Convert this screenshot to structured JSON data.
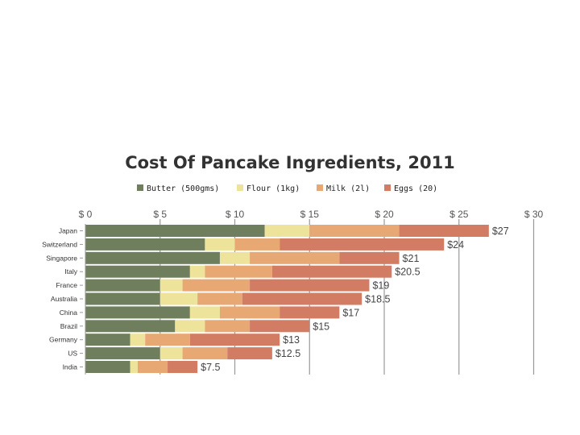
{
  "chart_data": {
    "type": "bar",
    "orientation": "horizontal",
    "stacked": true,
    "title": "Cost Of Pancake Ingredients, 2011",
    "categories": [
      "Japan",
      "Switzerland",
      "Singapore",
      "Italy",
      "France",
      "Australia",
      "China",
      "Brazil",
      "Germany",
      "US",
      "India"
    ],
    "series": [
      {
        "name": "Butter (500gms)",
        "color": "#6f7f5e",
        "values": [
          12,
          8,
          9,
          7,
          5,
          5,
          7,
          6,
          3,
          5,
          3
        ]
      },
      {
        "name": "Flour (1kg)",
        "color": "#ede39a",
        "values": [
          3,
          2,
          2,
          1,
          1.5,
          2.5,
          2,
          2,
          1,
          1.5,
          0.5
        ]
      },
      {
        "name": "Milk (2l)",
        "color": "#e7a873",
        "values": [
          6,
          3,
          6,
          4.5,
          4.5,
          3,
          4,
          3,
          3,
          3,
          2
        ]
      },
      {
        "name": "Eggs (20)",
        "color": "#d37c64",
        "values": [
          6,
          11,
          4,
          8,
          8,
          8,
          4,
          4,
          6,
          3,
          2
        ]
      }
    ],
    "totals": [
      "$27",
      "$24",
      "$21",
      "$20.5",
      "$19",
      "$18.5",
      "$17",
      "$15",
      "$13",
      "$12.5",
      "$7.5"
    ],
    "xlim": [
      0,
      30
    ],
    "xticks": [
      0,
      5,
      10,
      15,
      20,
      25,
      30
    ],
    "xtick_labels": [
      "$ 0",
      "$ 5",
      "$ 10",
      "$ 15",
      "$ 20",
      "$ 25",
      "$ 30"
    ],
    "xaxis_position": "top",
    "grid": "vertical",
    "legend": "top-center",
    "xlabel": "",
    "ylabel": ""
  }
}
